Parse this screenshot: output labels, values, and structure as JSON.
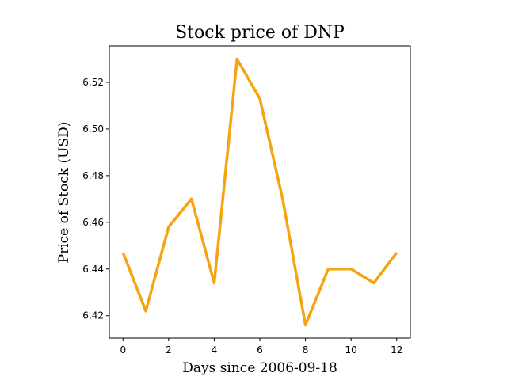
{
  "chart_data": {
    "type": "line",
    "title": "Stock price of DNP",
    "xlabel": "Days since 2006-09-18",
    "ylabel": "Price of Stock (USD)",
    "x": [
      0,
      1,
      2,
      3,
      4,
      5,
      6,
      7,
      8,
      9,
      10,
      11,
      12
    ],
    "series": [
      {
        "values": [
          6.447,
          6.422,
          6.458,
          6.47,
          6.434,
          6.53,
          6.513,
          6.47,
          6.416,
          6.44,
          6.44,
          6.434,
          6.447
        ]
      }
    ],
    "xlim": [
      -0.6,
      12.6
    ],
    "ylim": [
      6.4104,
      6.5356
    ],
    "xticks": [
      0,
      2,
      4,
      6,
      8,
      10,
      12
    ],
    "yticks": [
      6.42,
      6.44,
      6.46,
      6.48,
      6.5,
      6.52
    ],
    "ytick_labels": [
      "6.42",
      "6.44",
      "6.46",
      "6.48",
      "6.50",
      "6.52"
    ],
    "grid": false,
    "line_color": "#f5a30f"
  }
}
